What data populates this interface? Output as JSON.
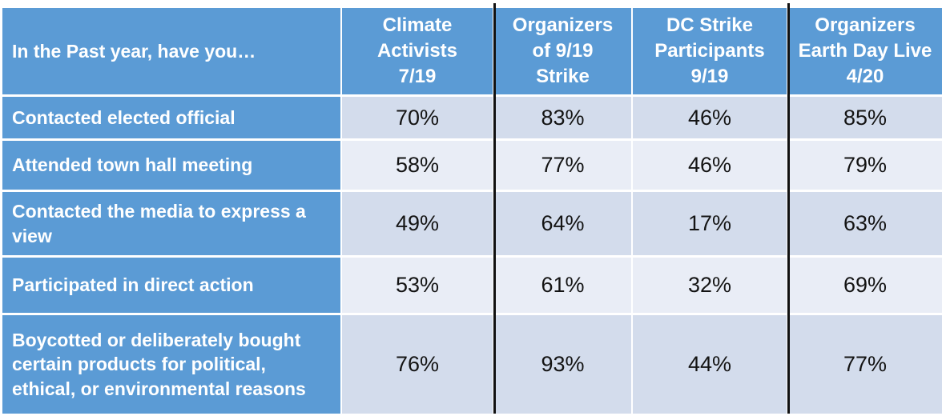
{
  "chart_data": {
    "type": "table",
    "title": "In the Past year, have you…",
    "units": "percent",
    "categories": [
      "Contacted elected official",
      "Attended town hall meeting",
      "Contacted the media to express a view",
      "Participated in direct action",
      "Boycotted or deliberately bought certain products for political, ethical, or environmental reasons"
    ],
    "series": [
      {
        "name": "Climate Activists 7/19",
        "values": [
          70,
          58,
          49,
          53,
          76
        ]
      },
      {
        "name": "Organizers of 9/19 Strike",
        "values": [
          83,
          77,
          64,
          61,
          93
        ]
      },
      {
        "name": "DC Strike Participants 9/19",
        "values": [
          46,
          46,
          17,
          32,
          44
        ]
      },
      {
        "name": "Organizers Earth Day Live 4/20",
        "values": [
          85,
          79,
          63,
          69,
          77
        ]
      }
    ]
  },
  "table": {
    "header": {
      "question": "In the Past year, have you…",
      "columns": [
        "Climate\nActivists\n7/19",
        "Organizers\nof 9/19\nStrike",
        "DC Strike\nParticipants\n9/19",
        "Organizers\nEarth Day Live\n4/20"
      ]
    },
    "rows": [
      {
        "label": "Contacted elected official",
        "values": [
          "70%",
          "83%",
          "46%",
          "85%"
        ]
      },
      {
        "label": "Attended town hall meeting",
        "values": [
          "58%",
          "77%",
          "46%",
          "79%"
        ]
      },
      {
        "label": "Contacted the media to express a view",
        "values": [
          "49%",
          "64%",
          "17%",
          "63%"
        ]
      },
      {
        "label": "Participated in direct action",
        "values": [
          "53%",
          "61%",
          "32%",
          "69%"
        ]
      },
      {
        "label": "Boycotted or deliberately bought certain products for political, ethical, or environmental reasons",
        "values": [
          "76%",
          "93%",
          "44%",
          "77%"
        ]
      }
    ]
  },
  "colors": {
    "header_blue": "#5B9BD5",
    "band_dark": "#D3DCEC",
    "band_light": "#E9EDF6",
    "divider_black": "#111111",
    "header_text": "#FFFFFF",
    "value_text": "#141414"
  }
}
